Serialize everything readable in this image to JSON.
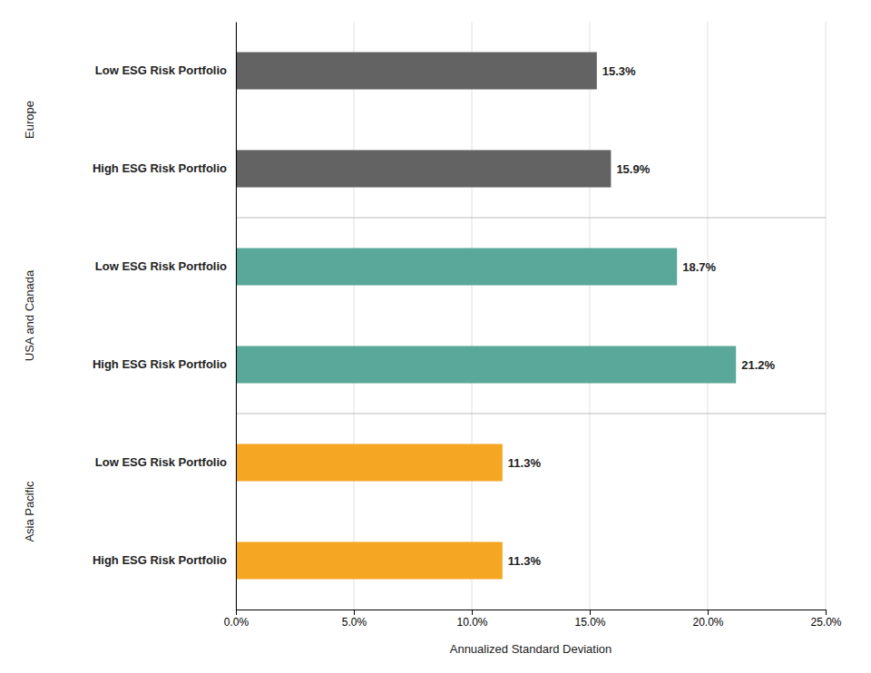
{
  "chart_data": {
    "type": "bar",
    "orientation": "horizontal",
    "categories": [
      "Low ESG Risk Portfolio",
      "High ESG Risk Portfolio",
      "Low ESG Risk Portfolio",
      "High ESG Risk Portfolio",
      "Low ESG Risk Portfolio",
      "High ESG Risk Portfolio"
    ],
    "values": [
      15.3,
      15.9,
      18.7,
      21.2,
      11.3,
      11.3
    ],
    "value_labels": [
      "15.3%",
      "15.9%",
      "18.7%",
      "21.2%",
      "11.3%",
      "11.3%"
    ],
    "colors": [
      "#636363",
      "#636363",
      "#5aA89A",
      "#5aA89A",
      "#F5A623",
      "#F5A623"
    ],
    "annotations": [
      "Europe",
      "USA and Canada",
      "Asia Pacific"
    ],
    "xlabel": "Annualized Standard Deviation",
    "xlim": [
      0,
      25
    ],
    "xticks": [
      {
        "value": 0,
        "label": "0.0%"
      },
      {
        "value": 5,
        "label": "5.0%"
      },
      {
        "value": 10,
        "label": "10.0%"
      },
      {
        "value": 15,
        "label": "15.0%"
      },
      {
        "value": 20,
        "label": "20.0%"
      },
      {
        "value": 25,
        "label": "25.0%"
      }
    ],
    "grid": true,
    "data_labels": true
  }
}
